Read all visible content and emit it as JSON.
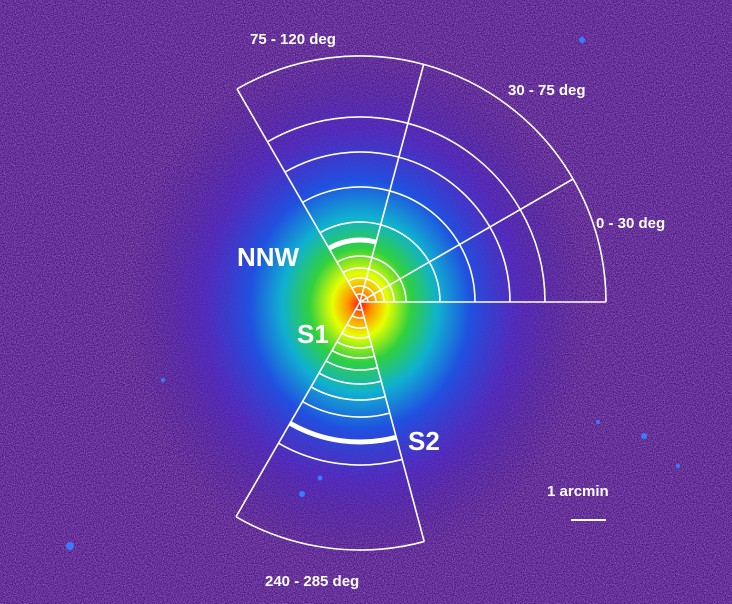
{
  "sectors": [
    {
      "label": "75 - 120 deg"
    },
    {
      "label": "30 - 75 deg"
    },
    {
      "label": "0 - 30 deg"
    },
    {
      "label": "240 - 285 deg"
    }
  ],
  "regions": [
    {
      "label": "NNW"
    },
    {
      "label": "S1"
    },
    {
      "label": "S2"
    }
  ],
  "scale_bar": {
    "label": "1 arcmin"
  }
}
